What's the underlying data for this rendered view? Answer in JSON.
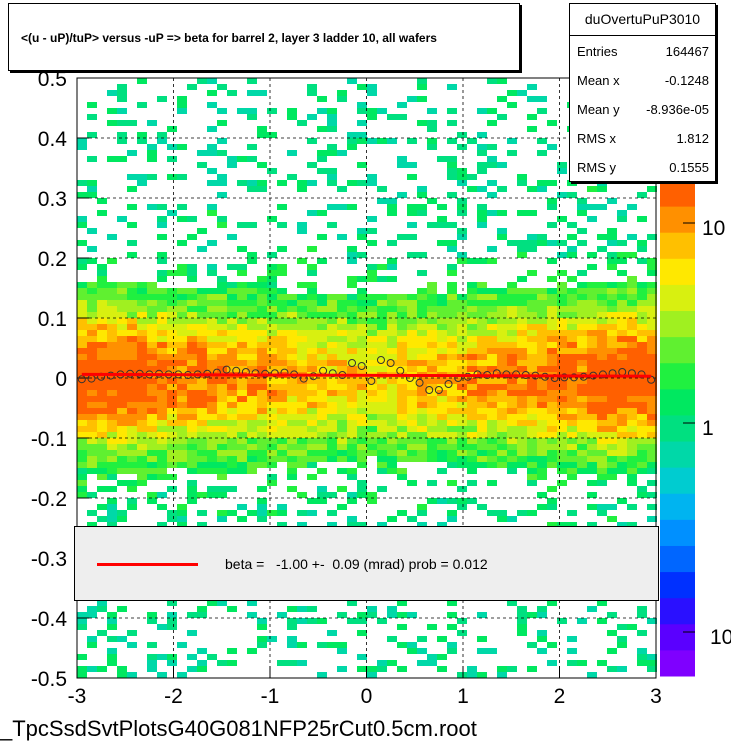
{
  "title": "<(u - uP)/tuP> versus  -uP => beta for barrel 2, layer 3 ladder 10, all wafers",
  "stats": {
    "name": "duOvertuPuP3010",
    "rows": [
      {
        "label": "Entries",
        "value": "164467"
      },
      {
        "label": "Mean x",
        "value": "-0.1248"
      },
      {
        "label": "Mean y",
        "value": "-8.936e-05"
      },
      {
        "label": "RMS x",
        "value": "1.812"
      },
      {
        "label": "RMS y",
        "value": "0.1555"
      }
    ]
  },
  "fit_legend": "beta =   -1.00 +-  0.09 (mrad) prob = 0.012",
  "filename": "_TpcSsdSvtPlotsG40G081NFP25rCut0.5cm.root",
  "colors": {
    "fit_line": "#ff0000",
    "palette": [
      "#7f00ff",
      "#5a00ff",
      "#2a10ff",
      "#0030ff",
      "#0066ff",
      "#0090ff",
      "#00b4f0",
      "#00ccd0",
      "#00d8a8",
      "#00e080",
      "#00e860",
      "#20f040",
      "#60f030",
      "#a0f020",
      "#d8f010",
      "#ffe800",
      "#ffc000",
      "#ff9000",
      "#ff6000"
    ]
  },
  "chart_data": {
    "type": "heatmap",
    "xlim": [
      -3,
      3
    ],
    "ylim": [
      -0.5,
      0.5
    ],
    "x_ticks": [
      "-3",
      "-2",
      "-1",
      "0",
      "1",
      "2",
      "3"
    ],
    "y_ticks": [
      "-0.5",
      "-0.4",
      "-0.3",
      "-0.2",
      "-0.1",
      "0",
      "0.1",
      "0.2",
      "0.3",
      "0.4",
      "0.5"
    ],
    "z_scale": "log",
    "z_ticks": [
      "10",
      "1",
      "10"
    ],
    "grid": true,
    "profile_points": {
      "x": [
        -2.95,
        -2.85,
        -2.75,
        -2.65,
        -2.55,
        -2.45,
        -2.35,
        -2.25,
        -2.15,
        -2.05,
        -1.95,
        -1.85,
        -1.75,
        -1.65,
        -1.55,
        -1.45,
        -1.35,
        -1.25,
        -1.15,
        -1.05,
        -0.95,
        -0.85,
        -0.75,
        -0.65,
        -0.55,
        -0.45,
        -0.35,
        -0.25,
        -0.15,
        -0.05,
        0.05,
        0.15,
        0.25,
        0.35,
        0.45,
        0.55,
        0.65,
        0.75,
        0.85,
        0.95,
        1.05,
        1.15,
        1.25,
        1.35,
        1.45,
        1.55,
        1.65,
        1.75,
        1.85,
        1.95,
        2.05,
        2.15,
        2.25,
        2.35,
        2.45,
        2.55,
        2.65,
        2.75,
        2.85,
        2.95
      ],
      "y": [
        -0.002,
        -0.001,
        0.002,
        0.004,
        0.006,
        0.007,
        0.007,
        0.006,
        0.007,
        0.006,
        0.006,
        0.005,
        0.006,
        0.007,
        0.009,
        0.014,
        0.012,
        0.01,
        0.008,
        0.007,
        0.008,
        0.009,
        0.006,
        -0.001,
        0.003,
        0.012,
        0.008,
        0.005,
        0.025,
        0.02,
        -0.005,
        0.03,
        0.025,
        0.012,
        0.0,
        -0.008,
        -0.02,
        -0.02,
        -0.01,
        0.0,
        0.002,
        0.006,
        0.005,
        0.008,
        0.006,
        0.006,
        0.005,
        0.004,
        0.002,
        0.0,
        0.001,
        0.001,
        0.002,
        0.004,
        0.006,
        0.008,
        0.01,
        0.008,
        0.006,
        -0.003
      ]
    },
    "fit": {
      "beta_mrad": -1.0,
      "error_mrad": 0.09,
      "prob": 0.012
    }
  }
}
